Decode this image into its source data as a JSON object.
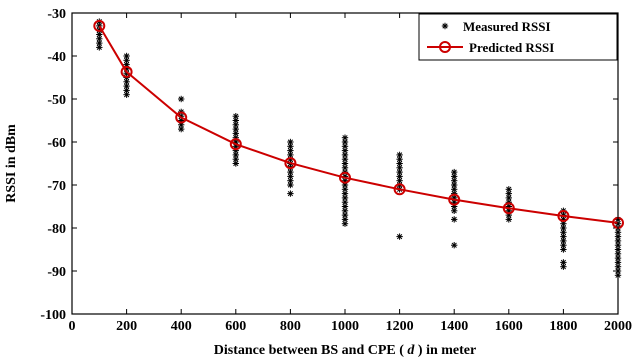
{
  "chart_data": {
    "type": "scatter",
    "xlabel_parts": [
      "Distance between BS and CPE ( ",
      "d",
      " ) in meter"
    ],
    "ylabel": "RSSI in dBm",
    "xlim": [
      0,
      2000
    ],
    "ylim": [
      -100,
      -30
    ],
    "xticks": [
      0,
      200,
      400,
      600,
      800,
      1000,
      1200,
      1400,
      1600,
      1800,
      2000
    ],
    "yticks": [
      -100,
      -90,
      -80,
      -70,
      -60,
      -50,
      -40,
      -30
    ],
    "grid": false,
    "legend_position": "top-right",
    "colors": {
      "predicted": "#cc0000",
      "measured": "#000000",
      "axis": "#000000"
    },
    "series": [
      {
        "name": "Measured RSSI",
        "marker": "asterisk",
        "groups": [
          {
            "x": 100,
            "y": [
              -32,
              -33,
              -34,
              -35,
              -36,
              -37,
              -38
            ]
          },
          {
            "x": 200,
            "y": [
              -40,
              -41,
              -42,
              -43,
              -44,
              -45,
              -46,
              -47,
              -48,
              -49
            ]
          },
          {
            "x": 400,
            "y": [
              -50,
              -53,
              -54,
              -55,
              -56,
              -57
            ]
          },
          {
            "x": 600,
            "y": [
              -54,
              -55,
              -56,
              -57,
              -58,
              -59,
              -60,
              -61,
              -62,
              -63,
              -64,
              -65
            ]
          },
          {
            "x": 800,
            "y": [
              -60,
              -61,
              -62,
              -63,
              -64,
              -65,
              -66,
              -67,
              -68,
              -69,
              -70,
              -72
            ]
          },
          {
            "x": 1000,
            "y": [
              -59,
              -60,
              -61,
              -62,
              -63,
              -64,
              -65,
              -66,
              -67,
              -68,
              -69,
              -70,
              -71,
              -72,
              -73,
              -74,
              -75,
              -76,
              -77,
              -78,
              -79
            ]
          },
          {
            "x": 1200,
            "y": [
              -63,
              -64,
              -65,
              -66,
              -67,
              -68,
              -69,
              -70,
              -71,
              -82
            ]
          },
          {
            "x": 1400,
            "y": [
              -67,
              -68,
              -69,
              -70,
              -71,
              -72,
              -73,
              -74,
              -75,
              -76,
              -78,
              -84
            ]
          },
          {
            "x": 1600,
            "y": [
              -71,
              -72,
              -73,
              -74,
              -75,
              -76,
              -77,
              -78
            ]
          },
          {
            "x": 1800,
            "y": [
              -76,
              -77,
              -78,
              -79,
              -80,
              -81,
              -82,
              -83,
              -84,
              -85,
              -88,
              -89
            ]
          },
          {
            "x": 2000,
            "y": [
              -78,
              -79,
              -80,
              -81,
              -82,
              -83,
              -84,
              -85,
              -86,
              -87,
              -88,
              -89,
              -90,
              -91
            ]
          }
        ]
      },
      {
        "name": "Predicted RSSI",
        "marker": "circle",
        "x": [
          100,
          200,
          400,
          600,
          800,
          1000,
          1200,
          1400,
          1600,
          1800,
          2000
        ],
        "y": [
          -33,
          -43.7,
          -54.3,
          -60.5,
          -64.9,
          -68.3,
          -71,
          -73.4,
          -75.4,
          -77.2,
          -78.8
        ]
      }
    ]
  }
}
